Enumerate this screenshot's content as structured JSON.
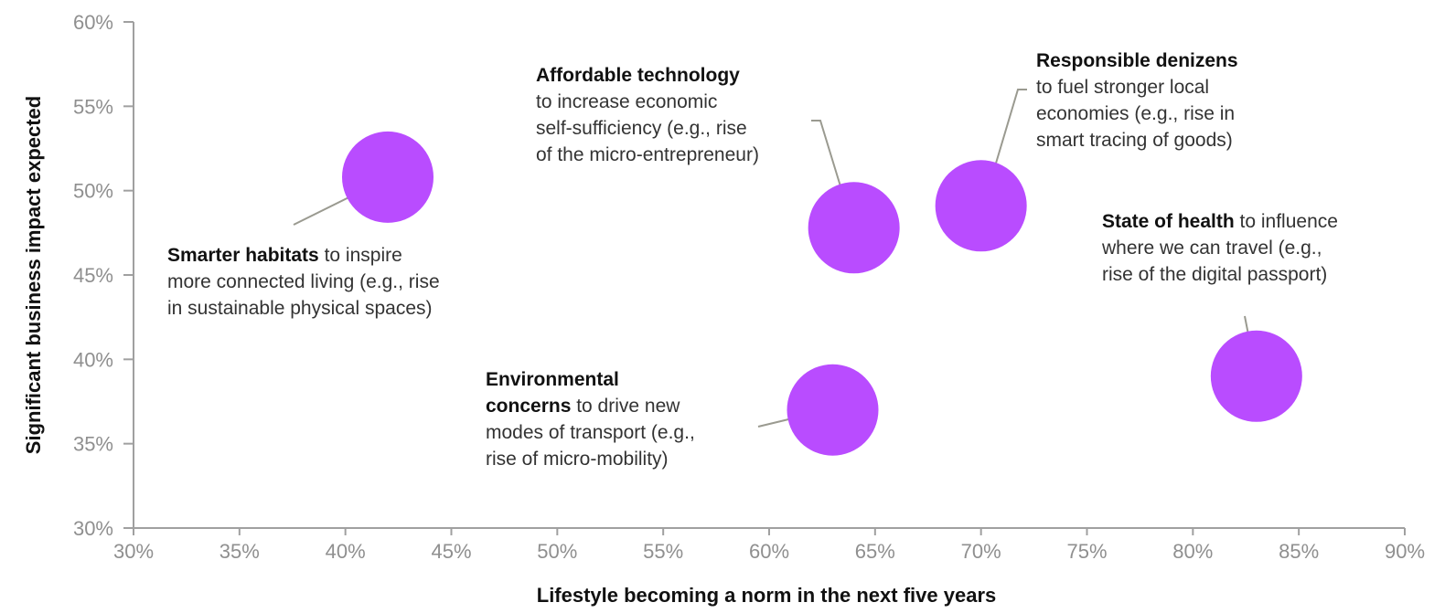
{
  "chart_data": {
    "type": "scatter",
    "xlabel": "Lifestyle becoming a norm in the next five years",
    "ylabel": "Significant business impact expected",
    "xlim": [
      0.3,
      0.9
    ],
    "ylim": [
      0.3,
      0.6
    ],
    "x_ticks": [
      "30%",
      "35%",
      "40%",
      "45%",
      "50%",
      "55%",
      "60%",
      "65%",
      "70%",
      "75%",
      "80%",
      "85%",
      "90%"
    ],
    "y_ticks": [
      "30%",
      "35%",
      "40%",
      "45%",
      "50%",
      "55%",
      "60%"
    ],
    "grid": false,
    "marker_color": "#b94cff",
    "leader_color": "#9a9a90",
    "points": [
      {
        "x": 0.42,
        "y": 0.508,
        "title": "Smarter habitats",
        "text": " to inspire\nmore connected living (e.g., rise\nin sustainable physical spaces)"
      },
      {
        "x": 0.64,
        "y": 0.478,
        "title": "Affordable technology",
        "text": "\nto increase economic\nself-sufficiency (e.g., rise\nof the micro-entrepreneur)"
      },
      {
        "x": 0.7,
        "y": 0.491,
        "title": "Responsible denizens",
        "text": "\nto fuel stronger local\neconomies (e.g., rise in\nsmart tracing of goods)"
      },
      {
        "x": 0.83,
        "y": 0.39,
        "title": "State of health",
        "text": " to influence\nwhere we can travel (e.g.,\nrise of the digital passport)"
      },
      {
        "x": 0.63,
        "y": 0.37,
        "title": "Environmental\nconcerns",
        "text": " to drive new\nmodes of transport (e.g.,\nrise of micro-mobility)"
      }
    ]
  }
}
